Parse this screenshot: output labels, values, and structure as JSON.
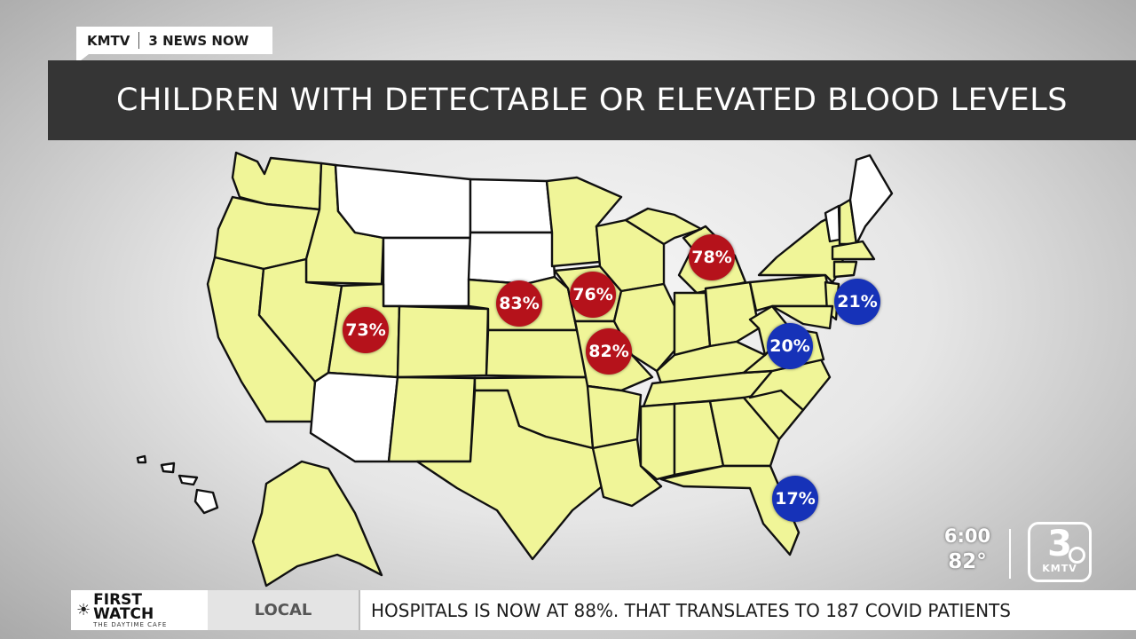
{
  "bug": {
    "station": "KMTV",
    "show": "3 NEWS NOW"
  },
  "headline": "CHILDREN WITH DETECTABLE OR ELEVATED BLOOD LEVELS",
  "map_colors": {
    "included": "#f0f598",
    "excluded": "#ffffff",
    "high": "#b5121b",
    "low": "#1632b8"
  },
  "badges": [
    {
      "state": "Utah",
      "label": "73%",
      "level": "high"
    },
    {
      "state": "Nebraska",
      "label": "83%",
      "level": "high"
    },
    {
      "state": "Iowa",
      "label": "76%",
      "level": "high"
    },
    {
      "state": "Missouri",
      "label": "82%",
      "level": "high"
    },
    {
      "state": "Michigan",
      "label": "78%",
      "level": "high"
    },
    {
      "state": "New Jersey",
      "label": "21%",
      "level": "low"
    },
    {
      "state": "Virginia",
      "label": "20%",
      "level": "low"
    },
    {
      "state": "Florida",
      "label": "17%",
      "level": "low"
    }
  ],
  "clock": {
    "time": "6:00",
    "temp": "82°"
  },
  "logo": {
    "number": "3",
    "call": "KMTV"
  },
  "ticker": {
    "sponsor": "FIRST WATCH",
    "sponsor_sub": "THE DAYTIME CAFE",
    "section": "LOCAL",
    "text": "HOSPITALS IS NOW AT 88%.  THAT TRANSLATES TO 187 COVID PATIENTS"
  }
}
